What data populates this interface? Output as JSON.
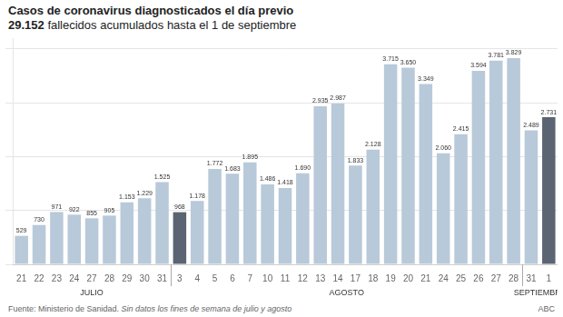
{
  "chart_data": {
    "type": "bar",
    "title": "Casos de coronavirus diagnosticados el día previo",
    "subtitle": "29.152 fallecidos acumulados hasta el 1 de septiembre",
    "source": "Fuente: Ministerio de Sanidad.",
    "note": "Sin datos los fines de semana de julio y agosto",
    "credit": "ABC",
    "categories": [
      "21",
      "22",
      "23",
      "24",
      "27",
      "28",
      "29",
      "30",
      "31",
      "3",
      "4",
      "5",
      "6",
      "7",
      "10",
      "11",
      "12",
      "13",
      "14",
      "17",
      "18",
      "19",
      "20",
      "21",
      "24",
      "25",
      "26",
      "27",
      "28",
      "31",
      "1"
    ],
    "values": [
      529,
      730,
      971,
      922,
      855,
      905,
      1153,
      1229,
      1525,
      968,
      1178,
      1772,
      1683,
      1895,
      1486,
      1418,
      1690,
      2935,
      2987,
      1833,
      2128,
      3715,
      3650,
      3349,
      2060,
      2415,
      3594,
      3781,
      3829,
      2489,
      2731
    ],
    "value_labels": [
      "529",
      "730",
      "971",
      "922",
      "855",
      "905",
      "1.153",
      "1.229",
      "1.525",
      "968",
      "1.178",
      "1.772",
      "1.683",
      "1.895",
      "1.486",
      "1.418",
      "1.690",
      "2.935",
      "2.987",
      "1.833",
      "2.128",
      "3.715",
      "3.650",
      "3.349",
      "2.060",
      "2.415",
      "3.594",
      "3.781",
      "3.829",
      "2.489",
      "2.731"
    ],
    "colors": [
      "#b8c9d9",
      "#b8c9d9",
      "#b8c9d9",
      "#b8c9d9",
      "#b8c9d9",
      "#b8c9d9",
      "#b8c9d9",
      "#b8c9d9",
      "#b8c9d9",
      "#5a6472",
      "#b8c9d9",
      "#b8c9d9",
      "#b8c9d9",
      "#b8c9d9",
      "#b8c9d9",
      "#b8c9d9",
      "#b8c9d9",
      "#b8c9d9",
      "#b8c9d9",
      "#b8c9d9",
      "#b8c9d9",
      "#b8c9d9",
      "#b8c9d9",
      "#b8c9d9",
      "#b8c9d9",
      "#b8c9d9",
      "#b8c9d9",
      "#b8c9d9",
      "#b8c9d9",
      "#b8c9d9",
      "#5a6472"
    ],
    "annotations": [
      {
        "text": "JULIO",
        "start": 0,
        "end": 8
      },
      {
        "text": "AGOSTO",
        "start": 9,
        "end": 28
      },
      {
        "text": "SEPTIEMBRE",
        "start": 29,
        "end": 30
      }
    ],
    "data_labels": true,
    "ylim": [
      0,
      4200
    ],
    "yticks": [
      0,
      1000,
      2000,
      3000,
      4000
    ],
    "grid": true,
    "tick_labels": "x"
  }
}
